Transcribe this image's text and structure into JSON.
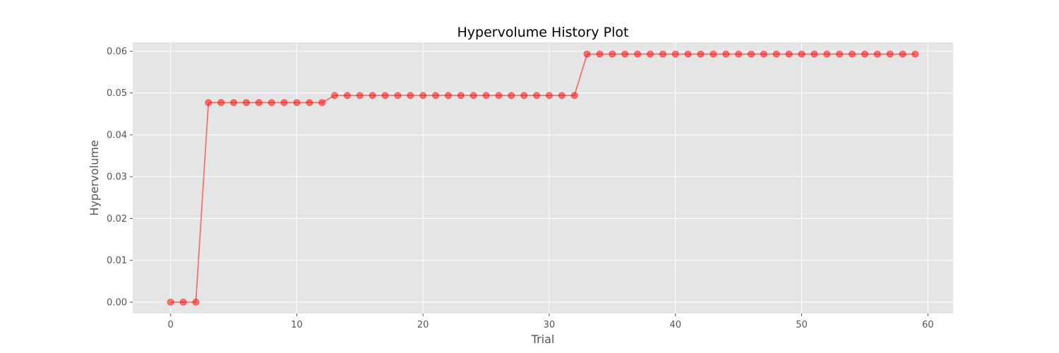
{
  "chart_data": {
    "type": "line",
    "title": "Hypervolume History Plot",
    "xlabel": "Trial",
    "ylabel": "Hypervolume",
    "xlim": [
      -3,
      62
    ],
    "ylim": [
      -0.0027,
      0.0621
    ],
    "xticks": [
      0,
      10,
      20,
      30,
      40,
      50,
      60
    ],
    "xtick_labels": [
      "0",
      "10",
      "20",
      "30",
      "40",
      "50",
      "60"
    ],
    "yticks": [
      0.0,
      0.01,
      0.02,
      0.03,
      0.04,
      0.05,
      0.06
    ],
    "ytick_labels": [
      "0.00",
      "0.01",
      "0.02",
      "0.03",
      "0.04",
      "0.05",
      "0.06"
    ],
    "grid": true,
    "style": "ggplot",
    "colors": {
      "series": "#ff0000",
      "background": "#e5e5e5",
      "grid": "#ffffff"
    },
    "series": [
      {
        "x": [
          0,
          1,
          2,
          3,
          4,
          5,
          6,
          7,
          8,
          9,
          10,
          11,
          12,
          13,
          14,
          15,
          16,
          17,
          18,
          19,
          20,
          21,
          22,
          23,
          24,
          25,
          26,
          27,
          28,
          29,
          30,
          31,
          32,
          33,
          34,
          35,
          36,
          37,
          38,
          39,
          40,
          41,
          42,
          43,
          44,
          45,
          46,
          47,
          48,
          49,
          50,
          51,
          52,
          53,
          54,
          55,
          56,
          57,
          58,
          59
        ],
        "values": [
          0.0,
          0.0,
          0.0,
          0.0477,
          0.0477,
          0.0477,
          0.0477,
          0.0477,
          0.0477,
          0.0477,
          0.0477,
          0.0477,
          0.0477,
          0.0494,
          0.0494,
          0.0494,
          0.0494,
          0.0494,
          0.0494,
          0.0494,
          0.0494,
          0.0494,
          0.0494,
          0.0494,
          0.0494,
          0.0494,
          0.0494,
          0.0494,
          0.0494,
          0.0494,
          0.0494,
          0.0494,
          0.0494,
          0.0593,
          0.0593,
          0.0593,
          0.0593,
          0.0593,
          0.0593,
          0.0593,
          0.0593,
          0.0593,
          0.0593,
          0.0593,
          0.0593,
          0.0593,
          0.0593,
          0.0593,
          0.0593,
          0.0593,
          0.0593,
          0.0593,
          0.0593,
          0.0593,
          0.0593,
          0.0593,
          0.0593,
          0.0593,
          0.0593,
          0.0593
        ]
      }
    ]
  }
}
